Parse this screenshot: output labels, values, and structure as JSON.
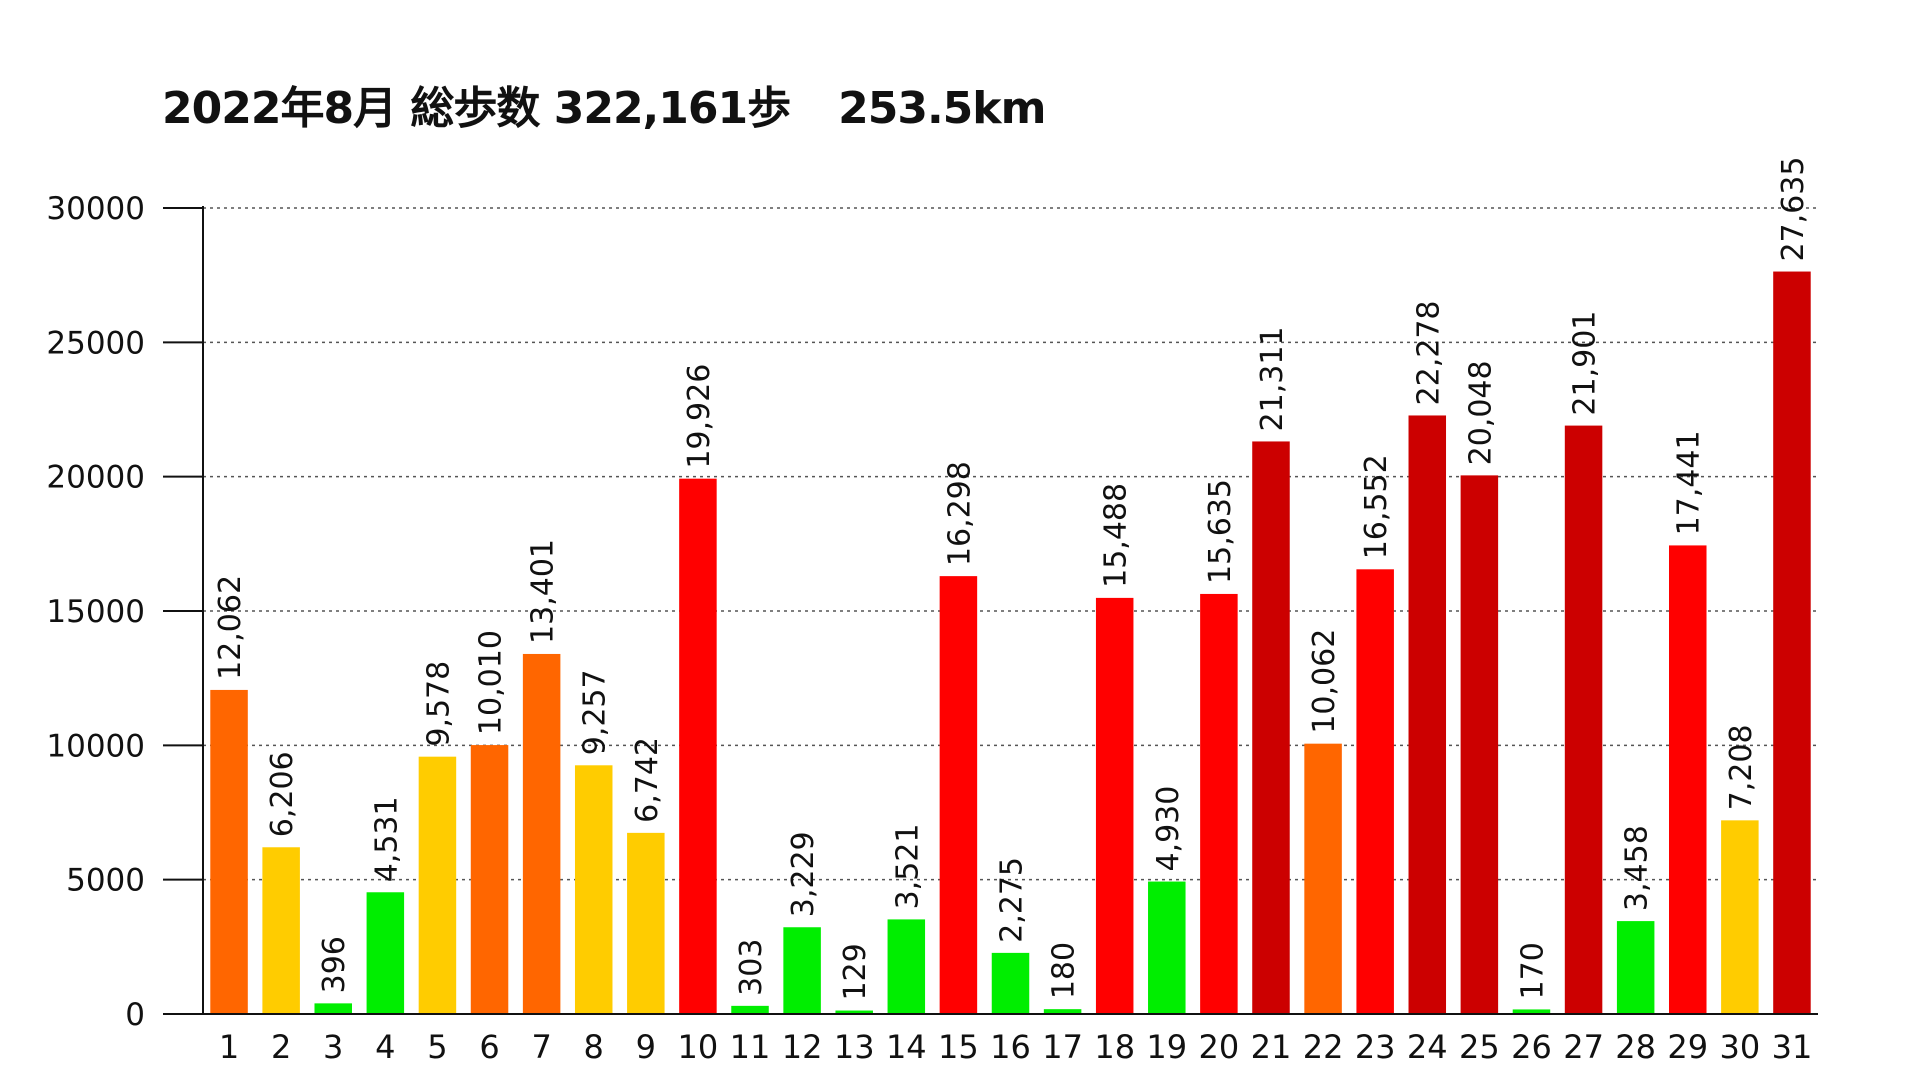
{
  "title": {
    "main": "2022年8月 総歩数 322,161歩",
    "distance": "253.5km"
  },
  "chart_data": {
    "type": "bar",
    "title": "2022年8月 総歩数 322,161歩　253.5km",
    "xlabel": "",
    "ylabel": "",
    "ylim": [
      0,
      30000
    ],
    "yticks": [
      "0",
      "5000",
      "10000",
      "15000",
      "20000",
      "25000",
      "30000"
    ],
    "grid": "dotted-horizontal",
    "legend": "none",
    "categories": [
      "1",
      "2",
      "3",
      "4",
      "5",
      "6",
      "7",
      "8",
      "9",
      "10",
      "11",
      "12",
      "13",
      "14",
      "15",
      "16",
      "17",
      "18",
      "19",
      "20",
      "21",
      "22",
      "23",
      "24",
      "25",
      "26",
      "27",
      "28",
      "29",
      "30",
      "31"
    ],
    "values": [
      12062,
      6206,
      396,
      4531,
      9578,
      10010,
      13401,
      9257,
      6742,
      19926,
      303,
      3229,
      129,
      3521,
      16298,
      2275,
      180,
      15488,
      4930,
      15635,
      21311,
      10062,
      16552,
      22278,
      20048,
      170,
      21901,
      3458,
      17441,
      7208,
      27635
    ],
    "labels": [
      "12,062",
      "6,206",
      "396",
      "4,531",
      "9,578",
      "10,010",
      "13,401",
      "9,257",
      "6,742",
      "19,926",
      "303",
      "3,229",
      "129",
      "3,521",
      "16,298",
      "2,275",
      "180",
      "15,488",
      "4,930",
      "15,635",
      "21,311",
      "10,062",
      "16,552",
      "22,278",
      "20,048",
      "170",
      "21,901",
      "3,458",
      "17,441",
      "7,208",
      "27,635"
    ],
    "colors": [
      "#ff6600",
      "#ffcc00",
      "#00ee00",
      "#00ee00",
      "#ffcc00",
      "#ff6600",
      "#ff6600",
      "#ffcc00",
      "#ffcc00",
      "#ff0000",
      "#00ee00",
      "#00ee00",
      "#00ee00",
      "#00ee00",
      "#ff0000",
      "#00ee00",
      "#00ee00",
      "#ff0000",
      "#00ee00",
      "#ff0000",
      "#cc0000",
      "#ff6600",
      "#ff0000",
      "#cc0000",
      "#cc0000",
      "#00ee00",
      "#cc0000",
      "#00ee00",
      "#ff0000",
      "#ffcc00",
      "#cc0000"
    ]
  }
}
